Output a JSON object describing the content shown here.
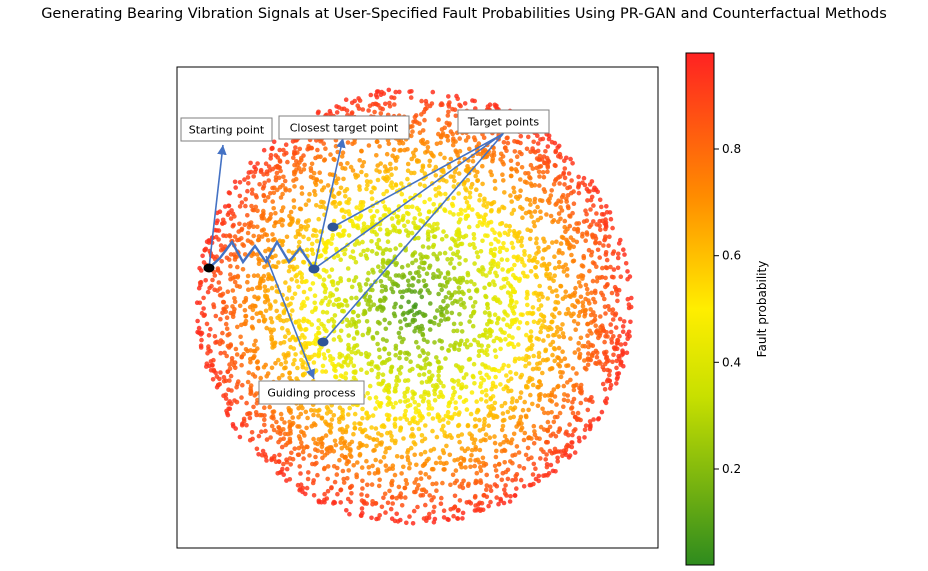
{
  "chart_data": {
    "type": "scatter",
    "title": "Generating Bearing Vibration Signals at User-Specified Fault Probabilities Using PR-GAN and Counterfactual Methods",
    "xlabel": "",
    "ylabel": "",
    "axes_ticks": "none",
    "grid": false,
    "distribution": "disk; fault probability rises radially from ~0.05 at the centre to ~0.95 at the rim",
    "colormap": {
      "colors": [
        "#2e8b1e",
        "#c8e000",
        "#ffee00",
        "#ff8c00",
        "#ff2222"
      ],
      "positions": [
        0.0,
        0.33,
        0.5,
        0.72,
        1.0
      ]
    },
    "colorbar": {
      "label": "Fault probability",
      "ticks": [
        0.2,
        0.4,
        0.6,
        0.8
      ],
      "range": [
        0.02,
        0.98
      ]
    },
    "highlighted_points": [
      {
        "label": "Starting point",
        "color": "#000000"
      },
      {
        "label": "Closest target point",
        "color": "#2f5597"
      },
      {
        "label": "Target points",
        "color": "#2f5597"
      },
      {
        "label": "Target points",
        "color": "#2f5597"
      }
    ],
    "annotations": [
      {
        "text": "Starting point"
      },
      {
        "text": "Closest target point"
      },
      {
        "text": "Target points"
      },
      {
        "text": "Guiding process"
      }
    ]
  }
}
